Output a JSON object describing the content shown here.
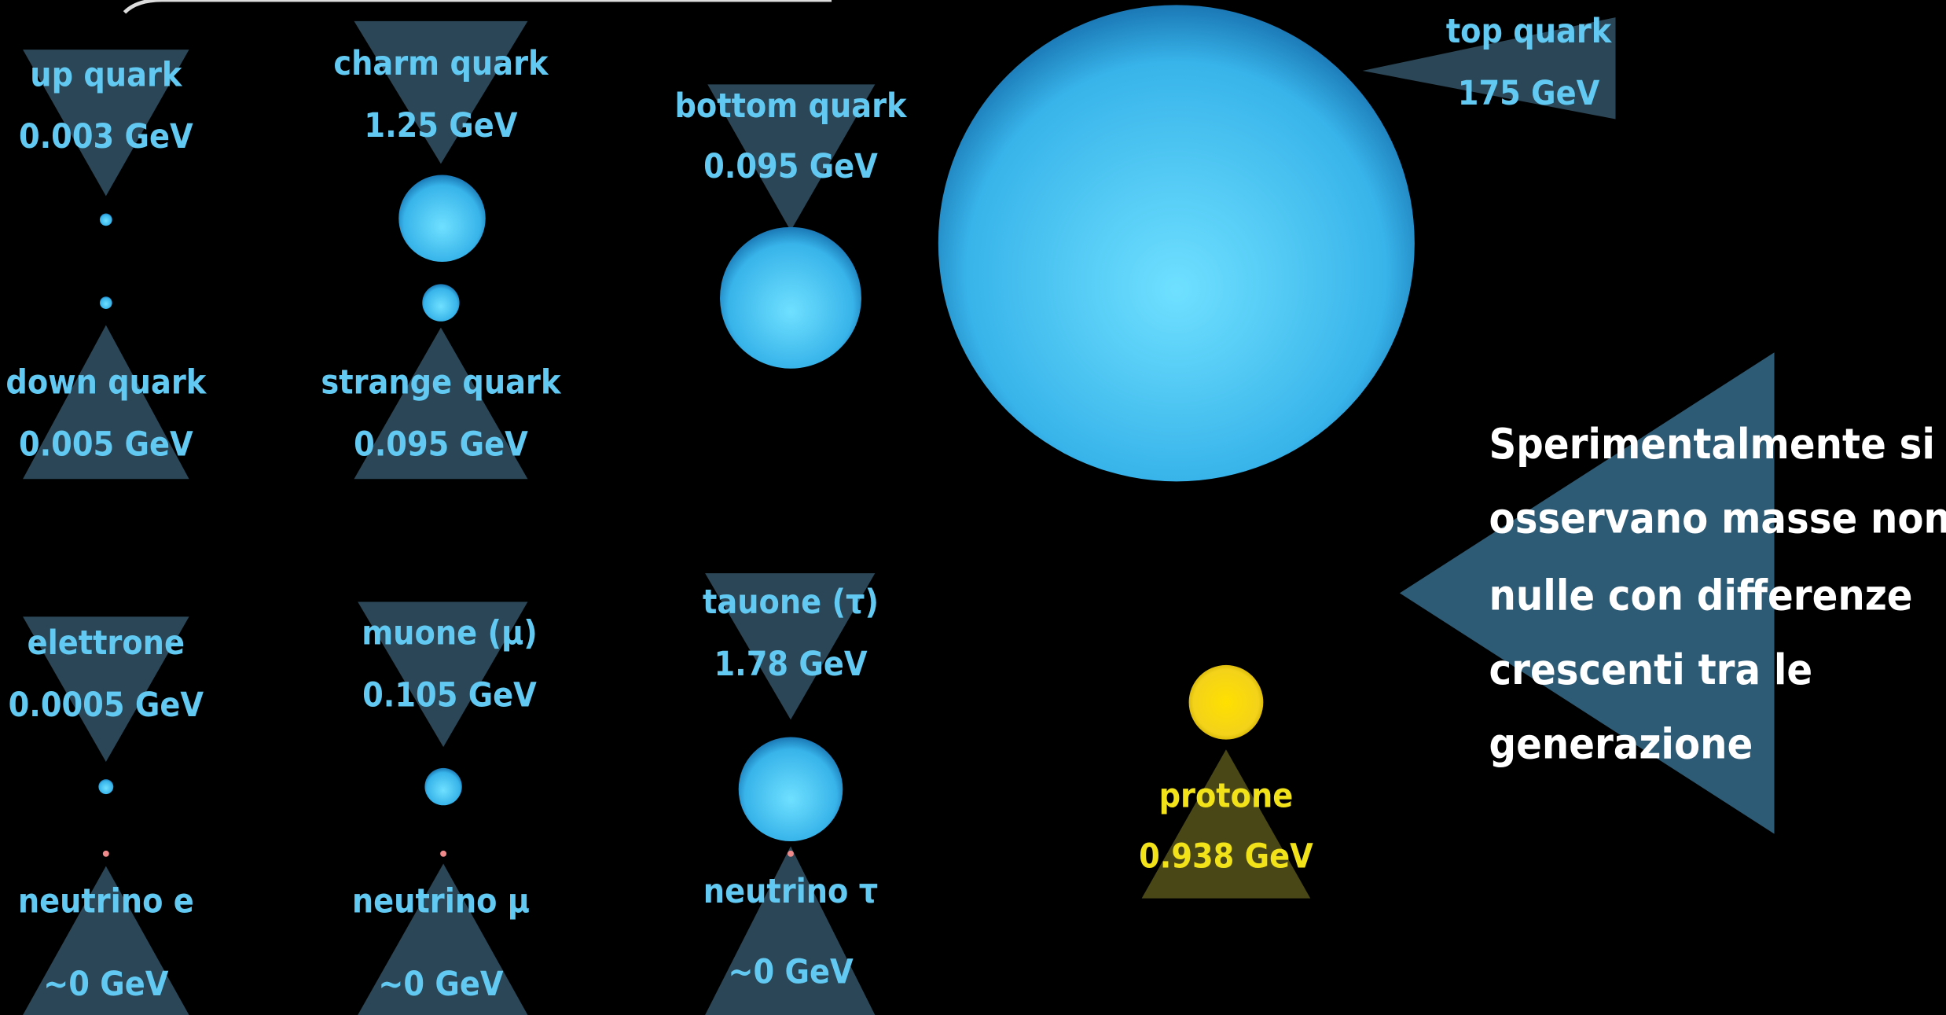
{
  "particles": [
    {
      "name": "up quark",
      "mass": "0.003 GeV"
    },
    {
      "name": "down quark",
      "mass": "0.005 GeV"
    },
    {
      "name": "charm quark",
      "mass": "1.25 GeV"
    },
    {
      "name": "strange quark",
      "mass": "0.095 GeV"
    },
    {
      "name": "bottom quark",
      "mass": "0.095 GeV"
    },
    {
      "name": "top quark",
      "mass": "175 GeV"
    },
    {
      "name": "elettrone",
      "mass": "0.0005 GeV"
    },
    {
      "name": "neutrino e",
      "mass": "~0 GeV"
    },
    {
      "name": "muone (μ)",
      "mass": "0.105 GeV"
    },
    {
      "name": "neutrino μ",
      "mass": "~0 GeV"
    },
    {
      "name": "tauone (τ)",
      "mass": "1.78 GeV"
    },
    {
      "name": "neutrino τ",
      "mass": "~0 GeV"
    },
    {
      "name": "protone",
      "mass": "0.938 GeV"
    }
  ],
  "note": [
    "Sperimentalmente si",
    "osservano masse non",
    "nulle con differenze",
    "crescenti tra le",
    "generazione"
  ]
}
